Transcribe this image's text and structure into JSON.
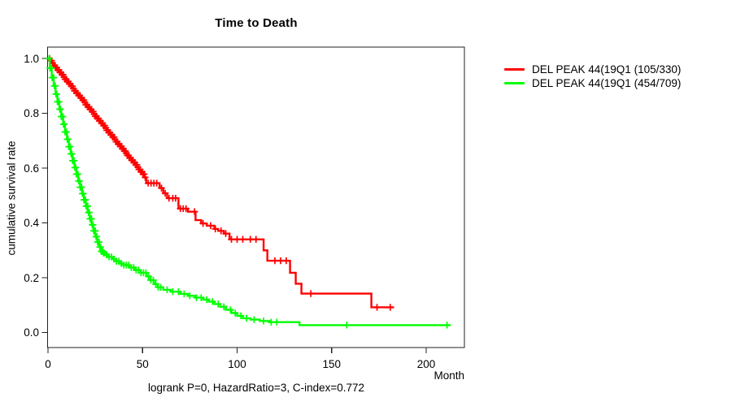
{
  "caption": "logrank P=0, HazardRatio=3, C-index=0.772",
  "chart_data": {
    "type": "line",
    "variant": "kaplan-meier-step",
    "title": "Time to Death",
    "xlabel": "Month",
    "ylabel": "cumulative survival rate",
    "caption": "logrank P=0, HazardRatio=3, C-index=0.772",
    "x_ticks": [
      0,
      50,
      100,
      150,
      200
    ],
    "y_ticks": [
      0.0,
      0.2,
      0.4,
      0.6,
      0.8,
      1.0
    ],
    "xlim": [
      0,
      220
    ],
    "ylim": [
      0,
      1.0
    ],
    "grid": false,
    "legend_position": "right-outside",
    "series": [
      {
        "name": "DEL PEAK 44(19Q1 (105/330)",
        "color": "#FF0000",
        "end_month": 183,
        "steps": [
          [
            0,
            1.0
          ],
          [
            1,
            0.992
          ],
          [
            2,
            0.983
          ],
          [
            3,
            0.975
          ],
          [
            4,
            0.966
          ],
          [
            5,
            0.958
          ],
          [
            6,
            0.949
          ],
          [
            7,
            0.941
          ],
          [
            8,
            0.932
          ],
          [
            9,
            0.924
          ],
          [
            10,
            0.916
          ],
          [
            11,
            0.907
          ],
          [
            12,
            0.899
          ],
          [
            13,
            0.89
          ],
          [
            14,
            0.882
          ],
          [
            15,
            0.873
          ],
          [
            16,
            0.865
          ],
          [
            17,
            0.856
          ],
          [
            18,
            0.848
          ],
          [
            19,
            0.84
          ],
          [
            20,
            0.831
          ],
          [
            21,
            0.823
          ],
          [
            22,
            0.814
          ],
          [
            23,
            0.806
          ],
          [
            24,
            0.797
          ],
          [
            25,
            0.789
          ],
          [
            26,
            0.781
          ],
          [
            27,
            0.772
          ],
          [
            28,
            0.764
          ],
          [
            29,
            0.755
          ],
          [
            30,
            0.747
          ],
          [
            31,
            0.738
          ],
          [
            32,
            0.73
          ],
          [
            33,
            0.721
          ],
          [
            34,
            0.713
          ],
          [
            35,
            0.705
          ],
          [
            36,
            0.696
          ],
          [
            37,
            0.688
          ],
          [
            38,
            0.679
          ],
          [
            39,
            0.671
          ],
          [
            40,
            0.662
          ],
          [
            41,
            0.654
          ],
          [
            42,
            0.646
          ],
          [
            43,
            0.637
          ],
          [
            44,
            0.629
          ],
          [
            45,
            0.62
          ],
          [
            46,
            0.612
          ],
          [
            47,
            0.603
          ],
          [
            48,
            0.595
          ],
          [
            49,
            0.586
          ],
          [
            50,
            0.578
          ],
          [
            51,
            0.566
          ],
          [
            52,
            0.545
          ],
          [
            59,
            0.527
          ],
          [
            61,
            0.508
          ],
          [
            63,
            0.49
          ],
          [
            69,
            0.452
          ],
          [
            74,
            0.441
          ],
          [
            78,
            0.41
          ],
          [
            81,
            0.398
          ],
          [
            84,
            0.39
          ],
          [
            88,
            0.378
          ],
          [
            90,
            0.371
          ],
          [
            93,
            0.361
          ],
          [
            96,
            0.34
          ],
          [
            114,
            0.3
          ],
          [
            116,
            0.262
          ],
          [
            128,
            0.218
          ],
          [
            131,
            0.178
          ],
          [
            134,
            0.142
          ],
          [
            171,
            0.092
          ]
        ],
        "censor_runs": [
          [
            0.8,
            51.5,
            0.55
          ]
        ],
        "censors": [
          53,
          54.5,
          56,
          57.5,
          60,
          62,
          64,
          66,
          67.5,
          70,
          71.5,
          73,
          77.5,
          82,
          86,
          88.5,
          91.5,
          94,
          97,
          100,
          103,
          107,
          110,
          120,
          123,
          126,
          139,
          174,
          181
        ]
      },
      {
        "name": "DEL PEAK 44(19Q1 (454/709)",
        "color": "#00FF00",
        "end_month": 213,
        "steps": [
          [
            0,
            1.0
          ],
          [
            1,
            0.965
          ],
          [
            2,
            0.93
          ],
          [
            3,
            0.9
          ],
          [
            4,
            0.87
          ],
          [
            5,
            0.842
          ],
          [
            6,
            0.815
          ],
          [
            7,
            0.788
          ],
          [
            8,
            0.76
          ],
          [
            9,
            0.732
          ],
          [
            10,
            0.705
          ],
          [
            11,
            0.678
          ],
          [
            12,
            0.652
          ],
          [
            13,
            0.627
          ],
          [
            14,
            0.602
          ],
          [
            15,
            0.578
          ],
          [
            16,
            0.553
          ],
          [
            17,
            0.53
          ],
          [
            18,
            0.507
          ],
          [
            19,
            0.484
          ],
          [
            20,
            0.461
          ],
          [
            21,
            0.438
          ],
          [
            22,
            0.415
          ],
          [
            23,
            0.393
          ],
          [
            24,
            0.371
          ],
          [
            25,
            0.35
          ],
          [
            26,
            0.33
          ],
          [
            27,
            0.312
          ],
          [
            28,
            0.296
          ],
          [
            29,
            0.29
          ],
          [
            30,
            0.284
          ],
          [
            32,
            0.276
          ],
          [
            34,
            0.268
          ],
          [
            36,
            0.26
          ],
          [
            38,
            0.252
          ],
          [
            40,
            0.246
          ],
          [
            43,
            0.237
          ],
          [
            46,
            0.228
          ],
          [
            49,
            0.218
          ],
          [
            52,
            0.205
          ],
          [
            54,
            0.191
          ],
          [
            56,
            0.177
          ],
          [
            58,
            0.165
          ],
          [
            61,
            0.156
          ],
          [
            65,
            0.149
          ],
          [
            70,
            0.141
          ],
          [
            74,
            0.134
          ],
          [
            78,
            0.127
          ],
          [
            82,
            0.12
          ],
          [
            85,
            0.113
          ],
          [
            88,
            0.104
          ],
          [
            91,
            0.094
          ],
          [
            94,
            0.083
          ],
          [
            97,
            0.071
          ],
          [
            100,
            0.061
          ],
          [
            103,
            0.052
          ],
          [
            107,
            0.047
          ],
          [
            112,
            0.042
          ],
          [
            117,
            0.038
          ],
          [
            133,
            0.027
          ]
        ],
        "censor_runs": [
          [
            0.6,
            29.8,
            0.4
          ],
          [
            31,
            60,
            1.3
          ]
        ],
        "censors": [
          63,
          66,
          69,
          72,
          75,
          78.5,
          81,
          84,
          87,
          90,
          93,
          96.5,
          99,
          102,
          105,
          109,
          114,
          118,
          121,
          158,
          211
        ]
      }
    ]
  }
}
